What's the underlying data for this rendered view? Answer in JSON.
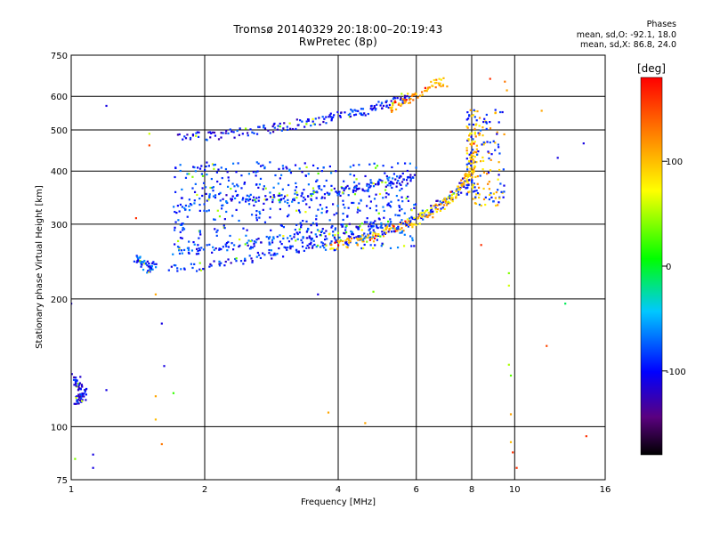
{
  "header": {
    "title": "Tromsø 20140329 20:18:00–20:19:43",
    "subtitle": "RwPretec (8p)"
  },
  "stats": {
    "heading": "Phases",
    "line_o": "mean, sd,O: -92.1, 18.0",
    "line_x": "mean, sd,X: 86.8, 24.0"
  },
  "colorbar": {
    "unit_label": "[deg]",
    "ticks": [
      "100",
      "0",
      "-100"
    ],
    "tick_values": [
      100,
      0,
      -100
    ],
    "range": [
      -180,
      180
    ]
  },
  "chart_data": {
    "type": "scatter",
    "xlabel": "Frequency [MHz]",
    "ylabel": "Stationary phase Virtual Height [km]",
    "xscale": "log2",
    "yscale": "log",
    "xlim": [
      1,
      16
    ],
    "ylim": [
      75,
      750
    ],
    "xticks": [
      1,
      2,
      4,
      6,
      8,
      10,
      16
    ],
    "xtick_labels": [
      "1",
      "2",
      "4",
      "6",
      "8",
      "10",
      "16"
    ],
    "yticks": [
      75,
      100,
      200,
      300,
      400,
      500,
      600,
      750
    ],
    "ytick_labels": [
      "75",
      "100",
      "200",
      "300",
      "400",
      "500",
      "600",
      "750"
    ],
    "grid": true,
    "traces": [
      {
        "mode": "O",
        "color_phase": -95,
        "points": [
          [
            1.65,
            236
          ],
          [
            2.0,
            238
          ],
          [
            2.4,
            246
          ],
          [
            2.8,
            255
          ],
          [
            3.2,
            262
          ],
          [
            3.6,
            268
          ],
          [
            4.0,
            275
          ],
          [
            4.5,
            282
          ],
          [
            5.0,
            290
          ],
          [
            5.5,
            298
          ],
          [
            6.0,
            310
          ],
          [
            6.5,
            325
          ],
          [
            7.0,
            340
          ],
          [
            7.5,
            360
          ],
          [
            7.8,
            380
          ]
        ]
      },
      {
        "mode": "O",
        "color_phase": -90,
        "points": [
          [
            1.7,
            258
          ],
          [
            2.0,
            262
          ],
          [
            2.5,
            270
          ],
          [
            3.0,
            278
          ],
          [
            3.5,
            284
          ],
          [
            4.0,
            290
          ],
          [
            4.5,
            296
          ],
          [
            5.0,
            302
          ]
        ]
      },
      {
        "mode": "O",
        "color_phase": -95,
        "points": [
          [
            1.8,
            340
          ],
          [
            2.2,
            345
          ],
          [
            2.6,
            345
          ],
          [
            3.0,
            345
          ],
          [
            3.4,
            350
          ],
          [
            3.8,
            355
          ],
          [
            4.2,
            360
          ],
          [
            4.6,
            365
          ],
          [
            5.0,
            375
          ],
          [
            5.5,
            380
          ],
          [
            5.9,
            385
          ]
        ]
      },
      {
        "mode": "O",
        "color_phase": -100,
        "points": [
          [
            1.75,
            485
          ],
          [
            2.0,
            485
          ],
          [
            2.3,
            490
          ],
          [
            2.7,
            500
          ],
          [
            3.0,
            510
          ],
          [
            3.4,
            520
          ],
          [
            3.8,
            530
          ],
          [
            4.2,
            545
          ],
          [
            4.6,
            555
          ],
          [
            5.0,
            570
          ],
          [
            5.4,
            585
          ],
          [
            5.8,
            605
          ]
        ]
      },
      {
        "mode": "X",
        "color_phase": 100,
        "points": [
          [
            3.8,
            265
          ],
          [
            4.2,
            270
          ],
          [
            4.6,
            278
          ],
          [
            5.0,
            285
          ],
          [
            5.5,
            295
          ],
          [
            6.0,
            305
          ],
          [
            6.5,
            320
          ],
          [
            7.0,
            335
          ],
          [
            7.4,
            355
          ],
          [
            7.8,
            380
          ],
          [
            8.0,
            400
          ],
          [
            8.1,
            440
          ],
          [
            8.0,
            500
          ]
        ]
      },
      {
        "mode": "X",
        "color_phase": 110,
        "points": [
          [
            5.2,
            555
          ],
          [
            5.6,
            585
          ],
          [
            6.0,
            610
          ],
          [
            6.6,
            640
          ],
          [
            7.0,
            650
          ]
        ]
      },
      {
        "mode": "O",
        "color_phase": -105,
        "points": [
          [
            1.02,
            130
          ],
          [
            1.04,
            126
          ],
          [
            1.06,
            118
          ],
          [
            1.03,
            115
          ],
          [
            1.08,
            122
          ]
        ]
      },
      {
        "mode": "O",
        "color_phase": -85,
        "points": [
          [
            1.4,
            250
          ],
          [
            1.45,
            242
          ],
          [
            1.5,
            236
          ],
          [
            1.55,
            240
          ]
        ]
      }
    ],
    "cloud": {
      "x_range": [
        1.7,
        6.0
      ],
      "y_range": [
        260,
        420
      ],
      "color_phase": -85
    },
    "cusp": {
      "x_range": [
        7.8,
        9.5
      ],
      "y_range": [
        330,
        560
      ],
      "color_phase": 60
    },
    "scattered": [
      {
        "x": 1.2,
        "y": 570,
        "phase": -110
      },
      {
        "x": 1.5,
        "y": 490,
        "phase": 60
      },
      {
        "x": 1.5,
        "y": 460,
        "phase": 150
      },
      {
        "x": 1.4,
        "y": 310,
        "phase": 160
      },
      {
        "x": 1.55,
        "y": 205,
        "phase": 110
      },
      {
        "x": 1.6,
        "y": 175,
        "phase": -110
      },
      {
        "x": 1.62,
        "y": 139,
        "phase": -110
      },
      {
        "x": 1.55,
        "y": 118,
        "phase": 110
      },
      {
        "x": 1.7,
        "y": 120,
        "phase": 20
      },
      {
        "x": 1.55,
        "y": 104,
        "phase": 100
      },
      {
        "x": 1.6,
        "y": 91,
        "phase": 130
      },
      {
        "x": 1.0,
        "y": 195,
        "phase": -110
      },
      {
        "x": 1.12,
        "y": 86,
        "phase": -110
      },
      {
        "x": 1.12,
        "y": 80,
        "phase": -110
      },
      {
        "x": 1.02,
        "y": 84,
        "phase": 40
      },
      {
        "x": 1.2,
        "y": 122,
        "phase": -110
      },
      {
        "x": 3.6,
        "y": 205,
        "phase": -110
      },
      {
        "x": 3.8,
        "y": 108,
        "phase": 110
      },
      {
        "x": 4.6,
        "y": 102,
        "phase": 110
      },
      {
        "x": 4.8,
        "y": 208,
        "phase": 40
      },
      {
        "x": 8.4,
        "y": 268,
        "phase": 160
      },
      {
        "x": 9.7,
        "y": 230,
        "phase": 40
      },
      {
        "x": 9.7,
        "y": 215,
        "phase": 60
      },
      {
        "x": 9.7,
        "y": 140,
        "phase": 50
      },
      {
        "x": 9.8,
        "y": 132,
        "phase": 30
      },
      {
        "x": 9.8,
        "y": 107,
        "phase": 110
      },
      {
        "x": 9.8,
        "y": 92,
        "phase": 100
      },
      {
        "x": 9.9,
        "y": 87,
        "phase": 160
      },
      {
        "x": 10.1,
        "y": 80,
        "phase": 160
      },
      {
        "x": 9.6,
        "y": 620,
        "phase": 110
      },
      {
        "x": 9.5,
        "y": 650,
        "phase": 130
      },
      {
        "x": 8.8,
        "y": 660,
        "phase": 160
      },
      {
        "x": 11.5,
        "y": 555,
        "phase": 110
      },
      {
        "x": 11.8,
        "y": 155,
        "phase": 150
      },
      {
        "x": 12.5,
        "y": 430,
        "phase": -110
      },
      {
        "x": 13.0,
        "y": 195,
        "phase": -10
      },
      {
        "x": 14.3,
        "y": 465,
        "phase": -110
      },
      {
        "x": 14.5,
        "y": 95,
        "phase": 160
      }
    ]
  }
}
